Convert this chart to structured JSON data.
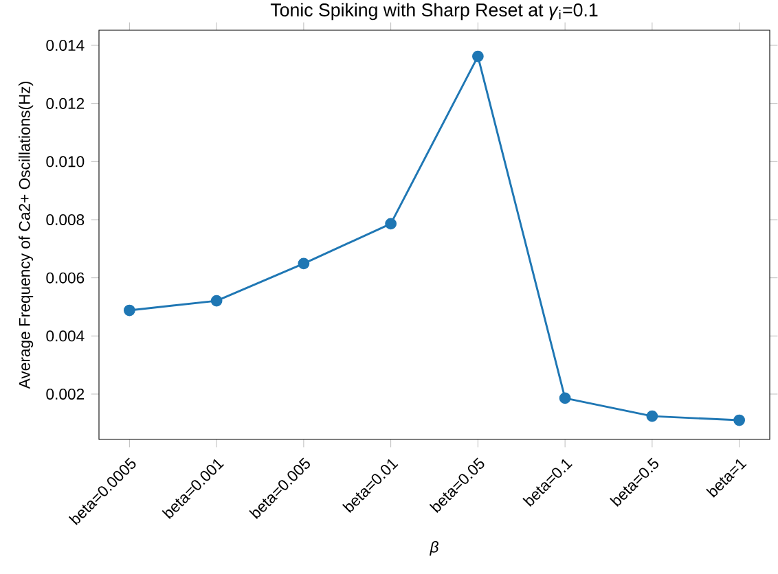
{
  "chart_data": {
    "type": "line",
    "title": "Tonic Spiking with Sharp Reset at *γ*$_{i}$=0.1",
    "xlabel": "*β*",
    "ylabel": "Average Frequency of Ca2+ Oscillations(Hz)",
    "categories": [
      "beta=0.0005",
      "beta=0.001",
      "beta=0.005",
      "beta=0.01",
      "beta=0.05",
      "beta=0.1",
      "beta=0.5",
      "beta=1"
    ],
    "series": [
      {
        "color": "#1f77b4",
        "values": [
          0.00488,
          0.00521,
          0.00649,
          0.00786,
          0.01362,
          0.00186,
          0.00124,
          0.0011
        ]
      }
    ],
    "ylim": [
      0.00044,
      0.01452
    ],
    "yticks": [
      0.002,
      0.004,
      0.006,
      0.008,
      {
        "value": 0.01,
        "label": "0.010"
      },
      0.012,
      0.014
    ],
    "marker": "circle",
    "line_style": "solid",
    "grid": false,
    "legend": false
  }
}
